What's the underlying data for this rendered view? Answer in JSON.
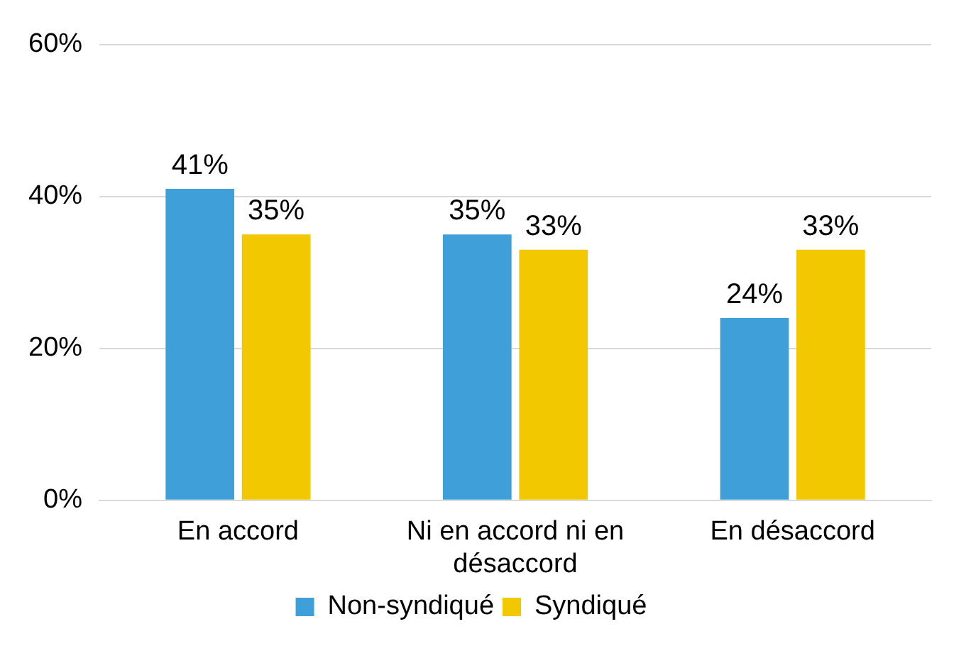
{
  "chart_data": {
    "type": "bar",
    "categories": [
      "En accord",
      "Ni en accord ni en désaccord",
      "En désaccord"
    ],
    "series": [
      {
        "name": "Non-syndiqué",
        "color": "#3fa0d9",
        "values": [
          41,
          35,
          24
        ],
        "value_labels": [
          "41%",
          "35%",
          "24%"
        ]
      },
      {
        "name": "Syndiqué",
        "color": "#f2c800",
        "values": [
          35,
          33,
          33
        ],
        "value_labels": [
          "35%",
          "33%",
          "33%"
        ]
      }
    ],
    "ylim": [
      0,
      60
    ],
    "yticks": [
      {
        "value": 0,
        "label": "0%"
      },
      {
        "value": 20,
        "label": "20%"
      },
      {
        "value": 40,
        "label": "40%"
      },
      {
        "value": 60,
        "label": "60%"
      }
    ],
    "grid": "y",
    "legend": "bottom"
  }
}
